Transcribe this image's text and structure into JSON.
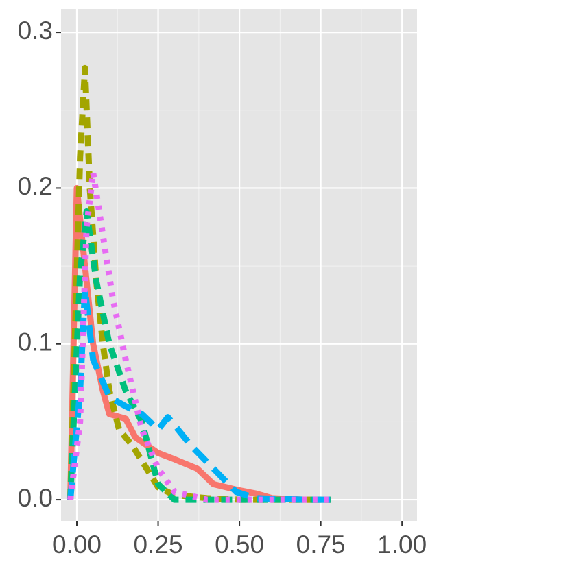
{
  "chart_data": {
    "type": "line",
    "xlim": [
      -0.0485,
      1.046
    ],
    "ylim": [
      -0.0136,
      0.315
    ],
    "xticks": [
      {
        "value": 0,
        "label": "0.00"
      },
      {
        "value": 0.25,
        "label": "0.25"
      },
      {
        "value": 0.5,
        "label": "0.50"
      },
      {
        "value": 0.75,
        "label": "0.75"
      },
      {
        "value": 1,
        "label": "1.00"
      }
    ],
    "yticks": [
      {
        "value": 0,
        "label": "0.0"
      },
      0.1,
      0.2,
      0.3
    ],
    "grid": true,
    "series": [
      {
        "color": "#F8766D",
        "linetype": "solid",
        "x": [
          -0.02,
          0,
          0.02,
          0.05,
          0.08,
          0.1,
          0.15,
          0.18,
          0.25,
          0.3,
          0.37,
          0.42,
          0.5,
          0.55,
          0.6,
          0.7,
          0.78
        ],
        "values": [
          0,
          0.2,
          0.16,
          0.1,
          0.07,
          0.055,
          0.052,
          0.04,
          0.03,
          0.026,
          0.02,
          0.01,
          0.006,
          0.004,
          0.001,
          0,
          0
        ]
      },
      {
        "color": "#A3A500",
        "linetype": "dashed",
        "x": [
          -0.02,
          0.01,
          0.025,
          0.04,
          0.06,
          0.08,
          0.1,
          0.13,
          0.17,
          0.2,
          0.25,
          0.3,
          0.4,
          0.5,
          0.78
        ],
        "values": [
          0,
          0.22,
          0.277,
          0.2,
          0.14,
          0.1,
          0.07,
          0.045,
          0.035,
          0.025,
          0.008,
          0.003,
          0.001,
          0,
          0
        ]
      },
      {
        "color": "#00BF7D",
        "linetype": "dashed",
        "x": [
          -0.02,
          0.01,
          0.03,
          0.06,
          0.1,
          0.15,
          0.2,
          0.25,
          0.3,
          0.5,
          0.78
        ],
        "values": [
          0,
          0.145,
          0.185,
          0.14,
          0.1,
          0.07,
          0.05,
          0.01,
          0,
          0,
          0
        ]
      },
      {
        "color": "#00B0F6",
        "linetype": "longdash",
        "x": [
          -0.02,
          0.01,
          0.025,
          0.05,
          0.1,
          0.15,
          0.2,
          0.25,
          0.28,
          0.35,
          0.42,
          0.49,
          0.55,
          0.7,
          0.78
        ],
        "values": [
          0,
          0.07,
          0.135,
          0.09,
          0.066,
          0.06,
          0.055,
          0.045,
          0.053,
          0.035,
          0.02,
          0.005,
          0.001,
          0,
          0
        ]
      },
      {
        "color": "#E76BF3",
        "linetype": "dotted",
        "x": [
          -0.02,
          0.01,
          0.03,
          0.05,
          0.08,
          0.11,
          0.15,
          0.2,
          0.25,
          0.3,
          0.4,
          0.78
        ],
        "values": [
          0,
          0.05,
          0.175,
          0.21,
          0.17,
          0.13,
          0.09,
          0.045,
          0.02,
          0.005,
          0,
          0
        ]
      }
    ]
  }
}
